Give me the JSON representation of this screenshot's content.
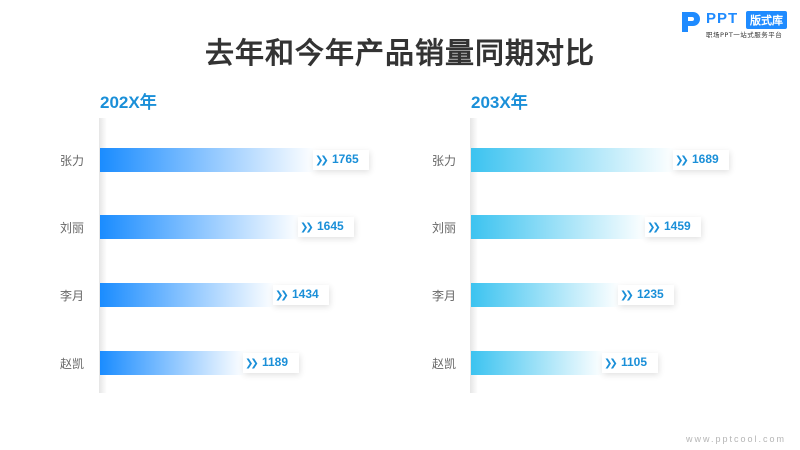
{
  "logo": {
    "brand": "PPT",
    "tag": "版式库",
    "subtitle": "职场PPT一站式服务平台"
  },
  "footer": "www.pptcool.com",
  "colors": {
    "left_bar": "#1a8cff",
    "right_bar": "#3cc3f0",
    "value": "#1a8fd8"
  },
  "chart_data": {
    "title": "去年和今年产品销量同期对比",
    "charts": [
      {
        "type": "bar",
        "orientation": "horizontal",
        "title": "202X年",
        "categories": [
          "张力",
          "刘丽",
          "李月",
          "赵凯"
        ],
        "values": [
          1765,
          1645,
          1434,
          1189
        ],
        "xlim": [
          0,
          1765
        ]
      },
      {
        "type": "bar",
        "orientation": "horizontal",
        "title": "203X年",
        "categories": [
          "张力",
          "刘丽",
          "李月",
          "赵凯"
        ],
        "values": [
          1689,
          1459,
          1235,
          1105
        ],
        "xlim": [
          0,
          1765
        ]
      }
    ]
  }
}
